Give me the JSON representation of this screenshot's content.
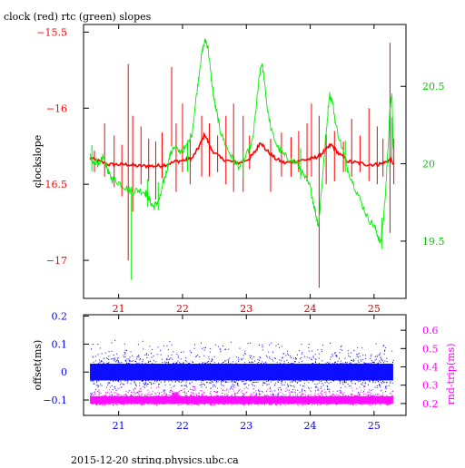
{
  "title": "clock (red) rtc (green) slopes",
  "footer": "2015-12-20 string.physics.ubc.ca",
  "colors": {
    "clock": "#ff0000",
    "rtc": "#00ee00",
    "offset": "#0000ff",
    "rndtrip": "#ff00ff",
    "axis_left_top": "#ff0000",
    "axis_right_top": "#00cc00",
    "axis_left_bottom": "#0000ff",
    "axis_right_bottom": "#ff00ff",
    "x_ticks": "#cc0000"
  },
  "chart_data": [
    {
      "type": "line",
      "title": "clock (red) rtc (green) slopes",
      "xlabel": "",
      "ylabel": "clockslope",
      "y2label": "",
      "xlim": [
        20.45,
        25.5
      ],
      "ylim": [
        -17.25,
        -15.45
      ],
      "y2lim": [
        19.13,
        20.9
      ],
      "x_ticks": [
        21,
        22,
        23,
        24,
        25
      ],
      "y_ticks": [
        -15.5,
        -16,
        -16.5,
        -17
      ],
      "y2_ticks": [
        20.5,
        20,
        19.5
      ],
      "grid": false,
      "series": [
        {
          "name": "clock",
          "axis": "left",
          "color": "#ff0000",
          "points": [
            [
              20.55,
              -16.33
            ],
            [
              20.7,
              -16.35
            ],
            [
              20.85,
              -16.37
            ],
            [
              21.0,
              -16.37
            ],
            [
              21.15,
              -16.37
            ],
            [
              21.3,
              -16.38
            ],
            [
              21.45,
              -16.38
            ],
            [
              21.6,
              -16.38
            ],
            [
              21.75,
              -16.37
            ],
            [
              21.9,
              -16.35
            ],
            [
              22.05,
              -16.34
            ],
            [
              22.15,
              -16.33
            ],
            [
              22.25,
              -16.26
            ],
            [
              22.35,
              -16.17
            ],
            [
              22.45,
              -16.27
            ],
            [
              22.6,
              -16.33
            ],
            [
              22.75,
              -16.35
            ],
            [
              22.9,
              -16.36
            ],
            [
              23.05,
              -16.33
            ],
            [
              23.15,
              -16.28
            ],
            [
              23.22,
              -16.22
            ],
            [
              23.3,
              -16.27
            ],
            [
              23.45,
              -16.33
            ],
            [
              23.6,
              -16.36
            ],
            [
              23.75,
              -16.35
            ],
            [
              23.9,
              -16.34
            ],
            [
              24.05,
              -16.33
            ],
            [
              24.15,
              -16.31
            ],
            [
              24.25,
              -16.27
            ],
            [
              24.33,
              -16.24
            ],
            [
              24.45,
              -16.3
            ],
            [
              24.6,
              -16.35
            ],
            [
              24.75,
              -16.36
            ],
            [
              24.9,
              -16.37
            ],
            [
              25.05,
              -16.37
            ],
            [
              25.15,
              -16.36
            ],
            [
              25.25,
              -16.34
            ],
            [
              25.3,
              -16.36
            ]
          ],
          "spikes": [
            [
              20.62,
              -16.28,
              -16.42
            ],
            [
              20.78,
              -16.1,
              -16.45
            ],
            [
              20.93,
              -16.18,
              -16.52
            ],
            [
              21.05,
              -16.24,
              -16.58
            ],
            [
              21.15,
              -15.71,
              -17.0
            ],
            [
              21.22,
              -16.05,
              -16.68
            ],
            [
              21.35,
              -16.12,
              -16.5
            ],
            [
              21.47,
              -16.2,
              -16.48
            ],
            [
              21.58,
              -16.22,
              -16.6
            ],
            [
              21.68,
              -16.16,
              -16.46
            ],
            [
              21.83,
              -15.73,
              -16.25
            ],
            [
              21.9,
              -16.1,
              -16.55
            ],
            [
              22.0,
              -15.97,
              -16.42
            ],
            [
              22.12,
              -16.2,
              -16.5
            ],
            [
              22.3,
              -16.05,
              -16.45
            ],
            [
              22.42,
              -16.1,
              -16.45
            ],
            [
              22.55,
              -16.18,
              -16.42
            ],
            [
              22.68,
              -16.05,
              -16.5
            ],
            [
              22.8,
              -15.97,
              -16.55
            ],
            [
              22.95,
              -16.05,
              -16.55
            ],
            [
              23.05,
              -16.18,
              -16.4
            ],
            [
              23.38,
              -16.2,
              -16.55
            ],
            [
              23.55,
              -16.16,
              -16.45
            ],
            [
              23.7,
              -16.19,
              -16.45
            ],
            [
              23.82,
              -16.15,
              -16.42
            ],
            [
              23.95,
              -16.1,
              -16.48
            ],
            [
              24.02,
              -15.97,
              -16.45
            ],
            [
              24.14,
              -16.05,
              -17.18
            ],
            [
              24.25,
              -16.17,
              -16.5
            ],
            [
              24.38,
              -16.15,
              -16.48
            ],
            [
              24.52,
              -16.22,
              -16.42
            ],
            [
              24.65,
              -16.07,
              -16.45
            ],
            [
              24.78,
              -16.18,
              -16.42
            ],
            [
              24.92,
              -16.0,
              -16.48
            ],
            [
              25.05,
              -16.12,
              -16.5
            ],
            [
              25.14,
              -16.2,
              -16.45
            ],
            [
              25.25,
              -15.57,
              -16.82
            ],
            [
              25.31,
              -16.2,
              -16.5
            ]
          ]
        },
        {
          "name": "rtc",
          "axis": "right",
          "color": "#00ee00",
          "points": [
            [
              20.55,
              20.05
            ],
            [
              20.6,
              20.0
            ],
            [
              20.65,
              20.02
            ],
            [
              20.7,
              19.98
            ],
            [
              20.75,
              20.05
            ],
            [
              20.8,
              20.0
            ],
            [
              20.85,
              19.93
            ],
            [
              20.9,
              19.9
            ],
            [
              21.0,
              19.88
            ],
            [
              21.1,
              19.85
            ],
            [
              21.2,
              19.82
            ],
            [
              21.3,
              19.83
            ],
            [
              21.4,
              19.82
            ],
            [
              21.45,
              19.8
            ],
            [
              21.5,
              19.75
            ],
            [
              21.55,
              19.72
            ],
            [
              21.6,
              19.75
            ],
            [
              21.65,
              19.78
            ],
            [
              21.7,
              19.88
            ],
            [
              21.75,
              19.95
            ],
            [
              21.8,
              20.05
            ],
            [
              21.85,
              20.1
            ],
            [
              21.95,
              20.08
            ],
            [
              22.05,
              20.1
            ],
            [
              22.15,
              20.2
            ],
            [
              22.22,
              20.45
            ],
            [
              22.28,
              20.65
            ],
            [
              22.32,
              20.75
            ],
            [
              22.36,
              20.8
            ],
            [
              22.4,
              20.75
            ],
            [
              22.45,
              20.55
            ],
            [
              22.5,
              20.4
            ],
            [
              22.55,
              20.3
            ],
            [
              22.6,
              20.2
            ],
            [
              22.7,
              20.1
            ],
            [
              22.8,
              20.02
            ],
            [
              22.9,
              19.98
            ],
            [
              23.0,
              20.05
            ],
            [
              23.1,
              20.15
            ],
            [
              23.15,
              20.35
            ],
            [
              23.2,
              20.55
            ],
            [
              23.24,
              20.65
            ],
            [
              23.28,
              20.55
            ],
            [
              23.33,
              20.35
            ],
            [
              23.4,
              20.2
            ],
            [
              23.5,
              20.1
            ],
            [
              23.6,
              20.05
            ],
            [
              23.7,
              20.02
            ],
            [
              23.8,
              20.0
            ],
            [
              23.9,
              19.92
            ],
            [
              24.0,
              19.85
            ],
            [
              24.05,
              19.75
            ],
            [
              24.1,
              19.65
            ],
            [
              24.13,
              19.6
            ],
            [
              24.18,
              19.85
            ],
            [
              24.25,
              20.2
            ],
            [
              24.3,
              20.45
            ],
            [
              24.35,
              20.4
            ],
            [
              24.4,
              20.25
            ],
            [
              24.5,
              20.1
            ],
            [
              24.6,
              19.95
            ],
            [
              24.7,
              19.85
            ],
            [
              24.8,
              19.75
            ],
            [
              24.9,
              19.65
            ],
            [
              25.0,
              19.6
            ],
            [
              25.05,
              19.55
            ],
            [
              25.1,
              19.48
            ],
            [
              25.15,
              19.65
            ],
            [
              25.2,
              19.95
            ],
            [
              25.25,
              20.35
            ],
            [
              25.28,
              20.45
            ],
            [
              25.3,
              20.1
            ]
          ],
          "spikes": [
            [
              20.58,
              20.12,
              19.95
            ],
            [
              21.2,
              19.85,
              19.25
            ],
            [
              21.45,
              19.9,
              19.72
            ],
            [
              21.62,
              19.88,
              19.7
            ],
            [
              22.08,
              20.15,
              19.95
            ],
            [
              22.95,
              20.08,
              19.9
            ],
            [
              23.85,
              20.1,
              19.9
            ],
            [
              24.55,
              20.15,
              19.95
            ],
            [
              25.12,
              19.65,
              19.45
            ],
            [
              25.28,
              20.3,
              20.0
            ]
          ]
        }
      ]
    },
    {
      "type": "scatter",
      "title": "",
      "xlabel": "",
      "ylabel": "offset(ms)",
      "y2label": "rnd-trip(ms)",
      "xlim": [
        20.45,
        25.5
      ],
      "ylim": [
        -0.155,
        0.205
      ],
      "y2lim": [
        0.135,
        0.685
      ],
      "x_ticks": [
        21,
        22,
        23,
        24,
        25
      ],
      "y_ticks": [
        0.2,
        0.1,
        0,
        -0.1
      ],
      "y2_ticks": [
        0.6,
        0.5,
        0.4,
        0.3,
        0.2
      ],
      "grid": false,
      "series": [
        {
          "name": "offset",
          "axis": "left",
          "color": "#0000ff",
          "band": [
            -0.03,
            0.03
          ],
          "scatter_range": [
            -0.1,
            0.12
          ],
          "x_range": [
            20.55,
            25.3
          ]
        },
        {
          "name": "rnd-trip",
          "axis": "right",
          "color": "#ff00ff",
          "band": [
            0.2,
            0.24
          ],
          "scatter_range": [
            0.19,
            0.3
          ],
          "x_range": [
            20.55,
            25.3
          ],
          "bump": [
            21.88,
            0.26
          ]
        }
      ]
    }
  ]
}
